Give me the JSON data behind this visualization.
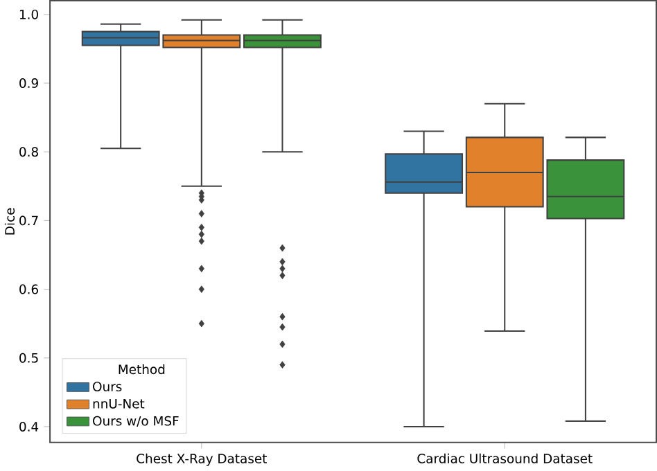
{
  "chart_data": {
    "type": "box",
    "ylabel": "Dice",
    "legend_title": "Method",
    "legend": "bottom left",
    "marker": "diamond",
    "categories": [
      "Chest X-Ray Dataset",
      "Cardiac Ultrasound Dataset"
    ],
    "ylim": [
      0.377,
      1.02
    ],
    "yticks": [
      0.4,
      0.5,
      0.6,
      0.7,
      0.8,
      0.9,
      {
        "value": 1.0,
        "label": "1.0"
      }
    ],
    "series": [
      {
        "name": "Ours",
        "color": "#3274a1",
        "boxes": [
          {
            "low": 0.805,
            "q1": 0.955,
            "median": 0.966,
            "q3": 0.975,
            "high": 0.986
          },
          {
            "low": 0.4,
            "q1": 0.74,
            "median": 0.756,
            "q3": 0.797,
            "high": 0.83
          }
        ]
      },
      {
        "name": "nnU-Net",
        "color": "#e1812c",
        "boxes": [
          {
            "low": 0.75,
            "q1": 0.952,
            "median": 0.962,
            "q3": 0.97,
            "high": 0.992,
            "outliers": [
              0.74,
              0.735,
              0.73,
              0.71,
              0.69,
              0.68,
              0.67,
              0.63,
              0.6,
              0.55
            ]
          },
          {
            "low": 0.539,
            "q1": 0.72,
            "median": 0.77,
            "q3": 0.821,
            "high": 0.87
          }
        ]
      },
      {
        "name": "Ours w/o MSF",
        "color": "#3a923a",
        "boxes": [
          {
            "low": 0.8,
            "q1": 0.952,
            "median": 0.962,
            "q3": 0.97,
            "high": 0.992,
            "outliers": [
              0.66,
              0.64,
              0.63,
              0.62,
              0.56,
              0.545,
              0.52,
              0.49
            ]
          },
          {
            "low": 0.408,
            "q1": 0.703,
            "median": 0.735,
            "q3": 0.788,
            "high": 0.821
          }
        ]
      }
    ]
  }
}
